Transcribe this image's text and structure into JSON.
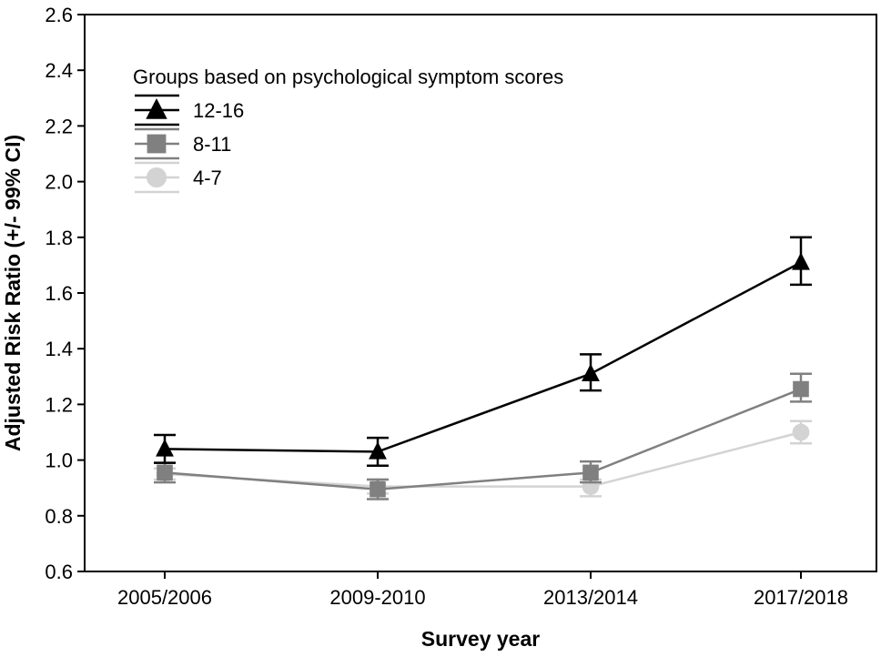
{
  "chart_data": {
    "type": "line",
    "xlabel": "Survey year",
    "ylabel": "Adjusted Risk Ratio (+/- 99% CI)",
    "categories": [
      "2005/2006",
      "2009-2010",
      "2013/2014",
      "2017/2018"
    ],
    "ylim": [
      0.6,
      2.6
    ],
    "yticks": [
      "0.6",
      "0.8",
      "1.0",
      "1.2",
      "1.4",
      "1.6",
      "1.8",
      "2.0",
      "2.2",
      "2.4",
      "2.6"
    ],
    "grid": false,
    "legend": {
      "title": "Groups based on psychological symptom scores",
      "placement": "top-left"
    },
    "series": [
      {
        "name": "12-16",
        "color": "#000000",
        "marker": "triangle",
        "values": [
          1.04,
          1.03,
          1.31,
          1.71
        ],
        "ci_low": [
          0.99,
          0.98,
          1.25,
          1.63
        ],
        "ci_high": [
          1.09,
          1.08,
          1.38,
          1.8
        ]
      },
      {
        "name": "8-11",
        "color": "#808080",
        "marker": "square",
        "values": [
          0.955,
          0.895,
          0.955,
          1.255
        ],
        "ci_low": [
          0.92,
          0.86,
          0.92,
          1.21
        ],
        "ci_high": [
          0.99,
          0.93,
          0.995,
          1.31
        ]
      },
      {
        "name": "4-7",
        "color": "#d3d3d3",
        "marker": "circle",
        "values": [
          0.95,
          0.905,
          0.905,
          1.1
        ],
        "ci_low": [
          0.93,
          0.88,
          0.87,
          1.06
        ],
        "ci_high": [
          0.97,
          0.93,
          0.93,
          1.14
        ]
      }
    ]
  }
}
